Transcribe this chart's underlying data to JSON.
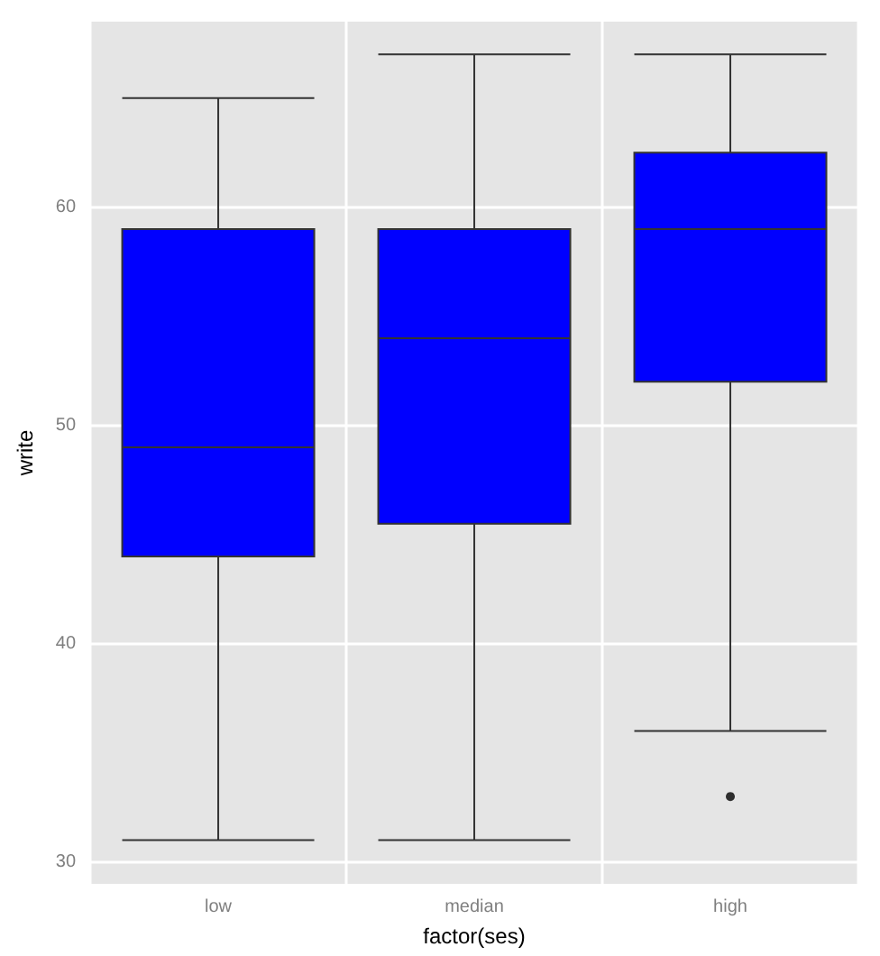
{
  "chart_data": {
    "type": "box",
    "xlabel": "factor(ses)",
    "ylabel": "write",
    "categories": [
      "low",
      "median",
      "high"
    ],
    "boxes": [
      {
        "low": 31,
        "q1": 44,
        "median": 49,
        "q3": 59,
        "high": 65
      },
      {
        "low": 31,
        "q1": 45.5,
        "median": 54,
        "q3": 59,
        "high": 67
      },
      {
        "low": 36,
        "q1": 52,
        "median": 59,
        "q3": 62.5,
        "high": 67,
        "outliers": [
          33
        ]
      }
    ],
    "color": "#0000ff",
    "ylim": [
      29,
      68.5
    ],
    "yticks": [
      30,
      40,
      50,
      60
    ],
    "grid": true
  }
}
